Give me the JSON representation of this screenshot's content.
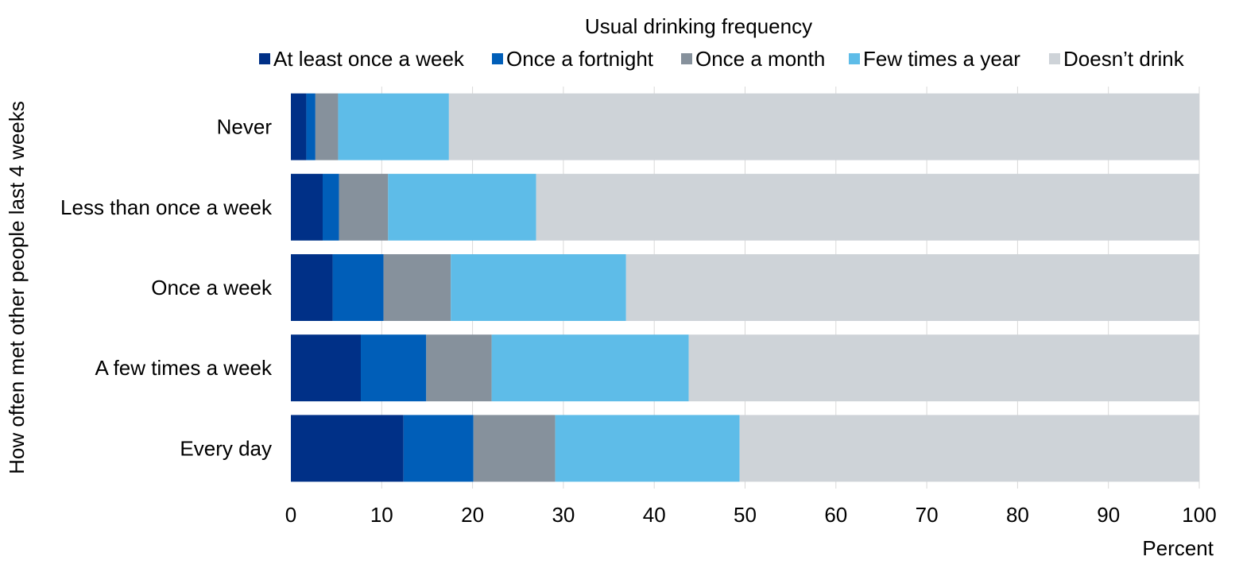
{
  "colors": {
    "gridline": "#d9d9d9",
    "text": "#000000"
  },
  "chart_data": {
    "type": "bar",
    "orientation": "horizontal",
    "stacked": true,
    "legend_title": "Usual drinking frequency",
    "legend_position": "top",
    "ylabel": "How often met other people last 4 weeks",
    "xlabel": "Percent",
    "xlim": [
      0,
      100
    ],
    "x_ticks": [
      0,
      10,
      20,
      30,
      40,
      50,
      60,
      70,
      80,
      90,
      100
    ],
    "grid": true,
    "categories": [
      "Never",
      "Less than once a week",
      "Once a week",
      "A few times a week",
      "Every day"
    ],
    "series": [
      {
        "name": "At least once a week",
        "color": "#003087",
        "values": [
          1.7,
          3.5,
          4.6,
          7.7,
          12.4
        ]
      },
      {
        "name": "Once a fortnight",
        "color": "#005EB8",
        "values": [
          1.0,
          1.8,
          5.6,
          7.2,
          7.7
        ]
      },
      {
        "name": "Once a month",
        "color": "#86919C",
        "values": [
          2.5,
          5.4,
          7.4,
          7.2,
          9.0
        ]
      },
      {
        "name": "Few times a year",
        "color": "#5EBCE8",
        "values": [
          12.2,
          16.3,
          19.3,
          21.7,
          20.3
        ]
      },
      {
        "name": "Doesn’t drink",
        "color": "#CED3D8",
        "values": [
          82.6,
          73.0,
          63.1,
          56.2,
          50.6
        ]
      }
    ]
  }
}
